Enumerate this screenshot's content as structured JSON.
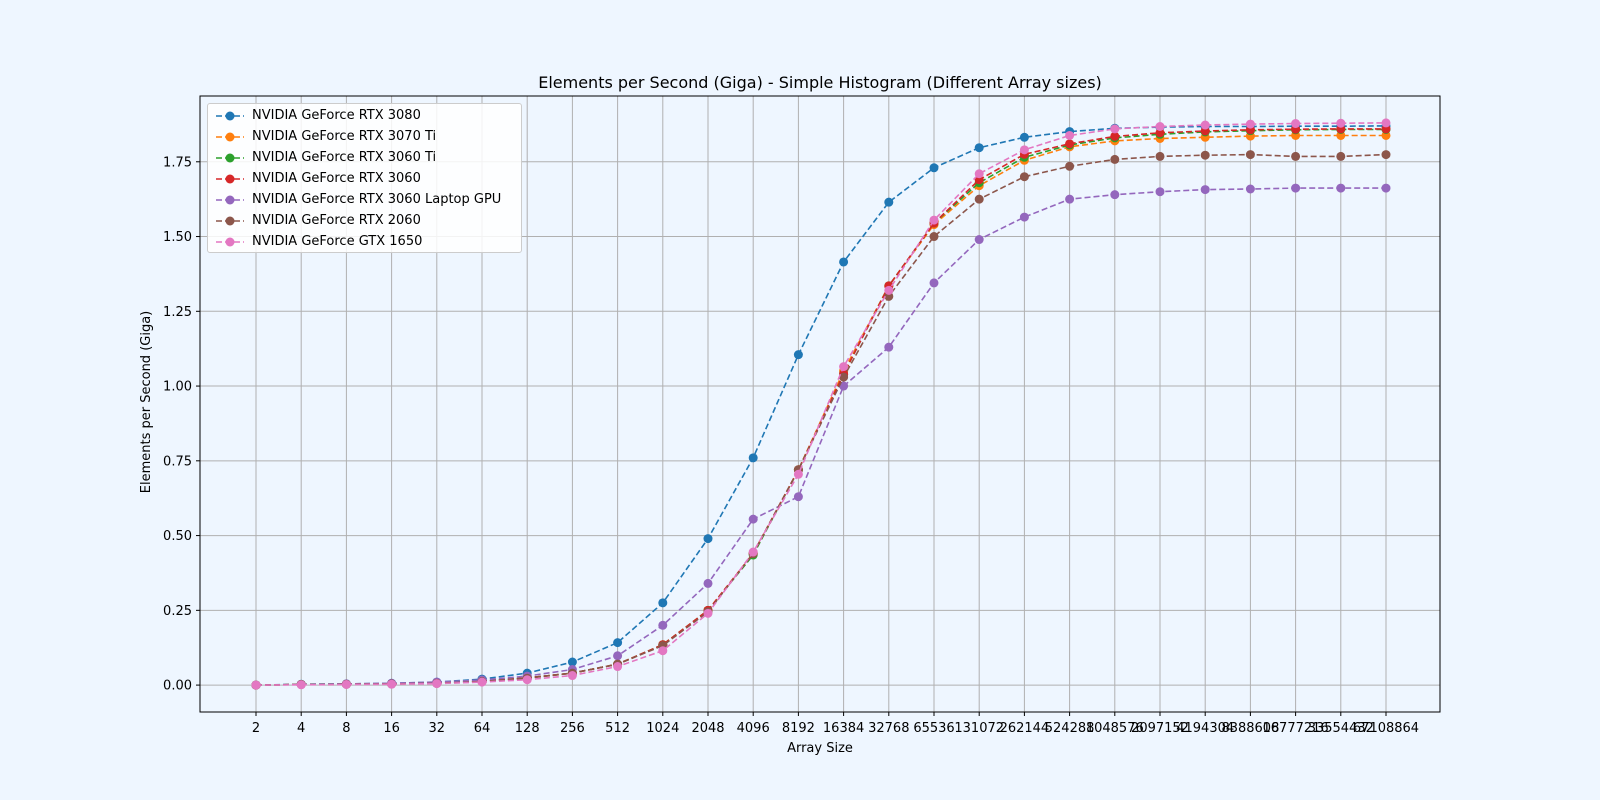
{
  "chart_data": {
    "type": "line",
    "title": "Elements per Second (Giga) - Simple Histogram (Different Array sizes)",
    "xlabel": "Array Size",
    "ylabel": "Elements per Second (Giga)",
    "ylim": [
      -0.09,
      1.97
    ],
    "yticks": [
      "0.00",
      "0.25",
      "0.50",
      "0.75",
      "1.00",
      "1.25",
      "1.50",
      "1.75"
    ],
    "grid": true,
    "legend_position": "top-left",
    "categories": [
      "2",
      "4",
      "8",
      "16",
      "32",
      "64",
      "128",
      "256",
      "512",
      "1024",
      "2048",
      "4096",
      "8192",
      "16384",
      "32768",
      "65536",
      "131072",
      "262144",
      "524288",
      "1048576",
      "2097152",
      "4194304",
      "8388608",
      "16777216",
      "33554432",
      "67108864"
    ],
    "series": [
      {
        "name": "NVIDIA GeForce RTX 3080",
        "color": "#1f77b4",
        "values": [
          0.0,
          0.003,
          0.004,
          0.006,
          0.01,
          0.02,
          0.04,
          0.077,
          0.142,
          0.275,
          0.49,
          0.76,
          1.105,
          1.415,
          1.615,
          1.73,
          1.797,
          1.832,
          1.851,
          1.862,
          1.866,
          1.868,
          1.868,
          1.869,
          1.869,
          1.87
        ]
      },
      {
        "name": "NVIDIA GeForce RTX 3070 Ti",
        "color": "#ff7f0e",
        "values": [
          0.0,
          0.002,
          0.003,
          0.004,
          0.006,
          0.013,
          0.024,
          0.04,
          0.07,
          0.135,
          0.25,
          0.44,
          0.72,
          1.05,
          1.335,
          1.54,
          1.67,
          1.755,
          1.8,
          1.82,
          1.828,
          1.832,
          1.836,
          1.838,
          1.838,
          1.838
        ]
      },
      {
        "name": "NVIDIA GeForce RTX 3060 Ti",
        "color": "#2ca02c",
        "values": [
          0.0,
          0.002,
          0.003,
          0.004,
          0.006,
          0.013,
          0.024,
          0.04,
          0.07,
          0.135,
          0.25,
          0.435,
          0.72,
          1.04,
          1.335,
          1.545,
          1.68,
          1.765,
          1.806,
          1.83,
          1.842,
          1.85,
          1.854,
          1.857,
          1.858,
          1.858
        ]
      },
      {
        "name": "NVIDIA GeForce RTX 3060",
        "color": "#d62728",
        "values": [
          0.0,
          0.002,
          0.003,
          0.004,
          0.006,
          0.013,
          0.024,
          0.04,
          0.07,
          0.135,
          0.25,
          0.44,
          0.72,
          1.04,
          1.335,
          1.545,
          1.69,
          1.775,
          1.81,
          1.835,
          1.847,
          1.853,
          1.857,
          1.859,
          1.86,
          1.86
        ]
      },
      {
        "name": "NVIDIA GeForce RTX 3060 Laptop GPU",
        "color": "#9467bd",
        "values": [
          0.0,
          0.002,
          0.004,
          0.006,
          0.01,
          0.017,
          0.03,
          0.052,
          0.098,
          0.2,
          0.34,
          0.555,
          0.63,
          1.0,
          1.13,
          1.345,
          1.49,
          1.565,
          1.625,
          1.64,
          1.65,
          1.657,
          1.659,
          1.662,
          1.662,
          1.662
        ]
      },
      {
        "name": "NVIDIA GeForce RTX 2060",
        "color": "#8c564b",
        "values": [
          0.0,
          0.002,
          0.003,
          0.004,
          0.006,
          0.012,
          0.023,
          0.04,
          0.07,
          0.132,
          0.245,
          0.44,
          0.72,
          1.03,
          1.3,
          1.5,
          1.625,
          1.7,
          1.735,
          1.758,
          1.768,
          1.772,
          1.774,
          1.768,
          1.768,
          1.774
        ]
      },
      {
        "name": "NVIDIA GeForce GTX 1650",
        "color": "#e377c2",
        "values": [
          0.0,
          0.001,
          0.002,
          0.003,
          0.005,
          0.01,
          0.018,
          0.032,
          0.062,
          0.115,
          0.24,
          0.445,
          0.705,
          1.065,
          1.32,
          1.555,
          1.71,
          1.79,
          1.838,
          1.86,
          1.868,
          1.873,
          1.876,
          1.878,
          1.879,
          1.88
        ]
      }
    ]
  }
}
